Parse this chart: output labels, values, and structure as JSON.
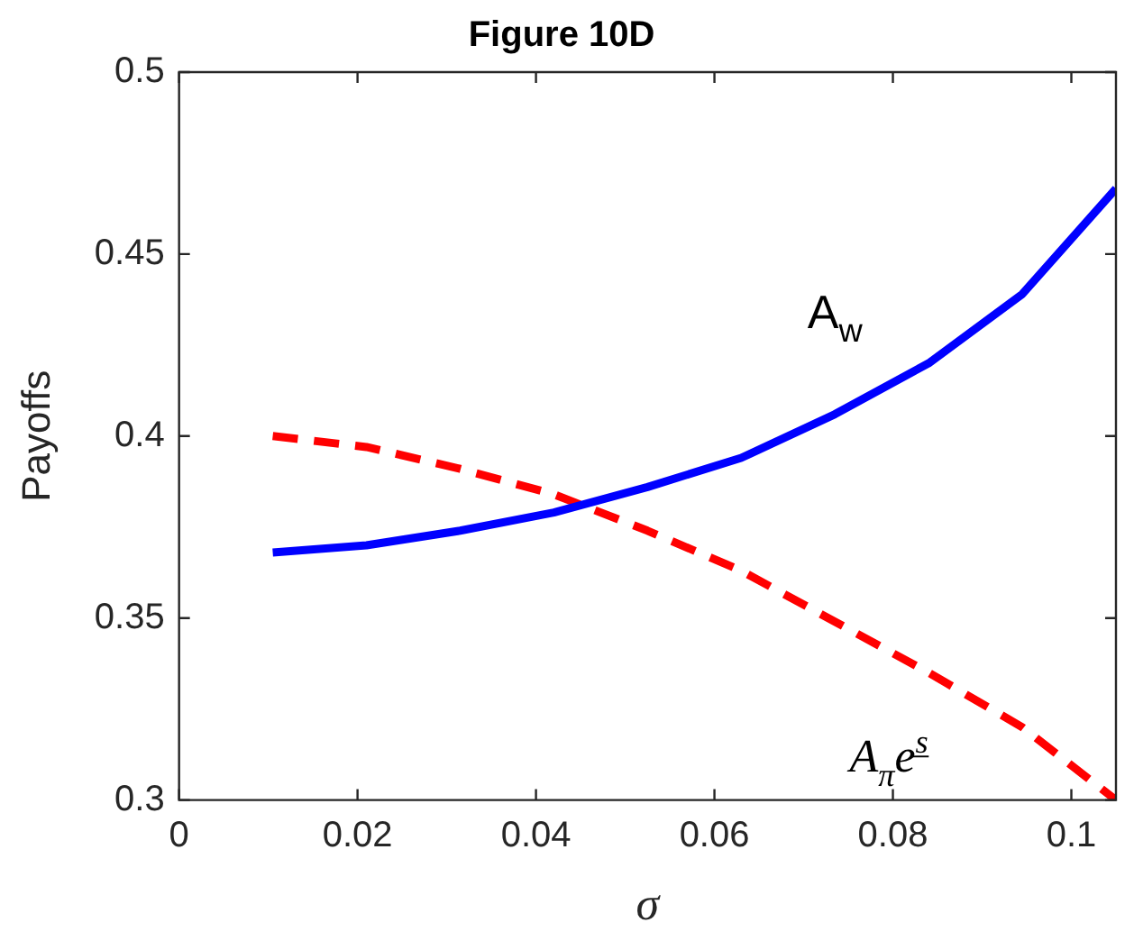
{
  "chart_data": {
    "type": "line",
    "title": "Figure 10D",
    "xlabel": "σ",
    "ylabel": "Payoffs",
    "xlim": [
      0,
      0.105
    ],
    "xticks": [
      0,
      0.02,
      0.04,
      0.06,
      0.08,
      0.1
    ],
    "ylim": [
      0.3,
      0.5
    ],
    "yticks": [
      0.3,
      0.35,
      0.4,
      0.45,
      0.5
    ],
    "grid": false,
    "legend": false,
    "marker": "none",
    "x": [
      0.0105,
      0.021,
      0.0315,
      0.042,
      0.0525,
      0.063,
      0.0735,
      0.084,
      0.0945,
      0.105
    ],
    "series": [
      {
        "name": "A$_{w}$",
        "color": "#0000ff",
        "line_style": "solid",
        "values": [
          0.368,
          0.37,
          0.374,
          0.379,
          0.386,
          0.394,
          0.406,
          0.42,
          0.439,
          0.468
        ]
      },
      {
        "name": "A$_{π}$e$^{s̲}$",
        "color": "#ff0000",
        "line_style": "dashed",
        "values": [
          0.4,
          0.397,
          0.391,
          0.384,
          0.374,
          0.363,
          0.349,
          0.335,
          0.32,
          0.3
        ]
      }
    ]
  }
}
